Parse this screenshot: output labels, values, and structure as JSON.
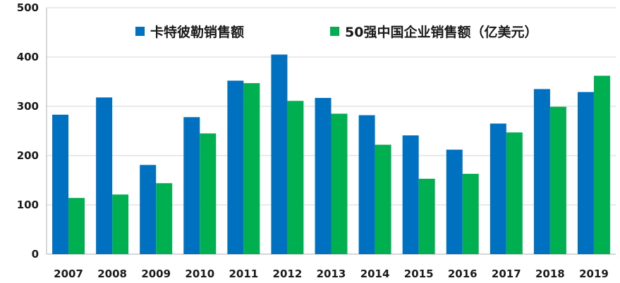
{
  "chart_data": {
    "type": "bar",
    "categories": [
      "2007",
      "2008",
      "2009",
      "2010",
      "2011",
      "2012",
      "2013",
      "2014",
      "2015",
      "2016",
      "2017",
      "2018",
      "2019"
    ],
    "series": [
      {
        "name": "卡特彼勒销售额",
        "color": "#0070C0",
        "values": [
          283,
          318,
          181,
          278,
          352,
          405,
          317,
          282,
          241,
          212,
          265,
          335,
          329
        ]
      },
      {
        "name": "50强中国企业销售额（亿美元）",
        "color": "#00B050",
        "values": [
          114,
          121,
          144,
          245,
          347,
          311,
          285,
          222,
          153,
          163,
          247,
          299,
          362
        ]
      }
    ],
    "title": "",
    "xlabel": "",
    "ylabel": "",
    "ylim": [
      0,
      500
    ],
    "yticks": [
      "0",
      "100",
      "200",
      "300",
      "400",
      "500"
    ],
    "grid": true,
    "legend_position": "top-center"
  }
}
